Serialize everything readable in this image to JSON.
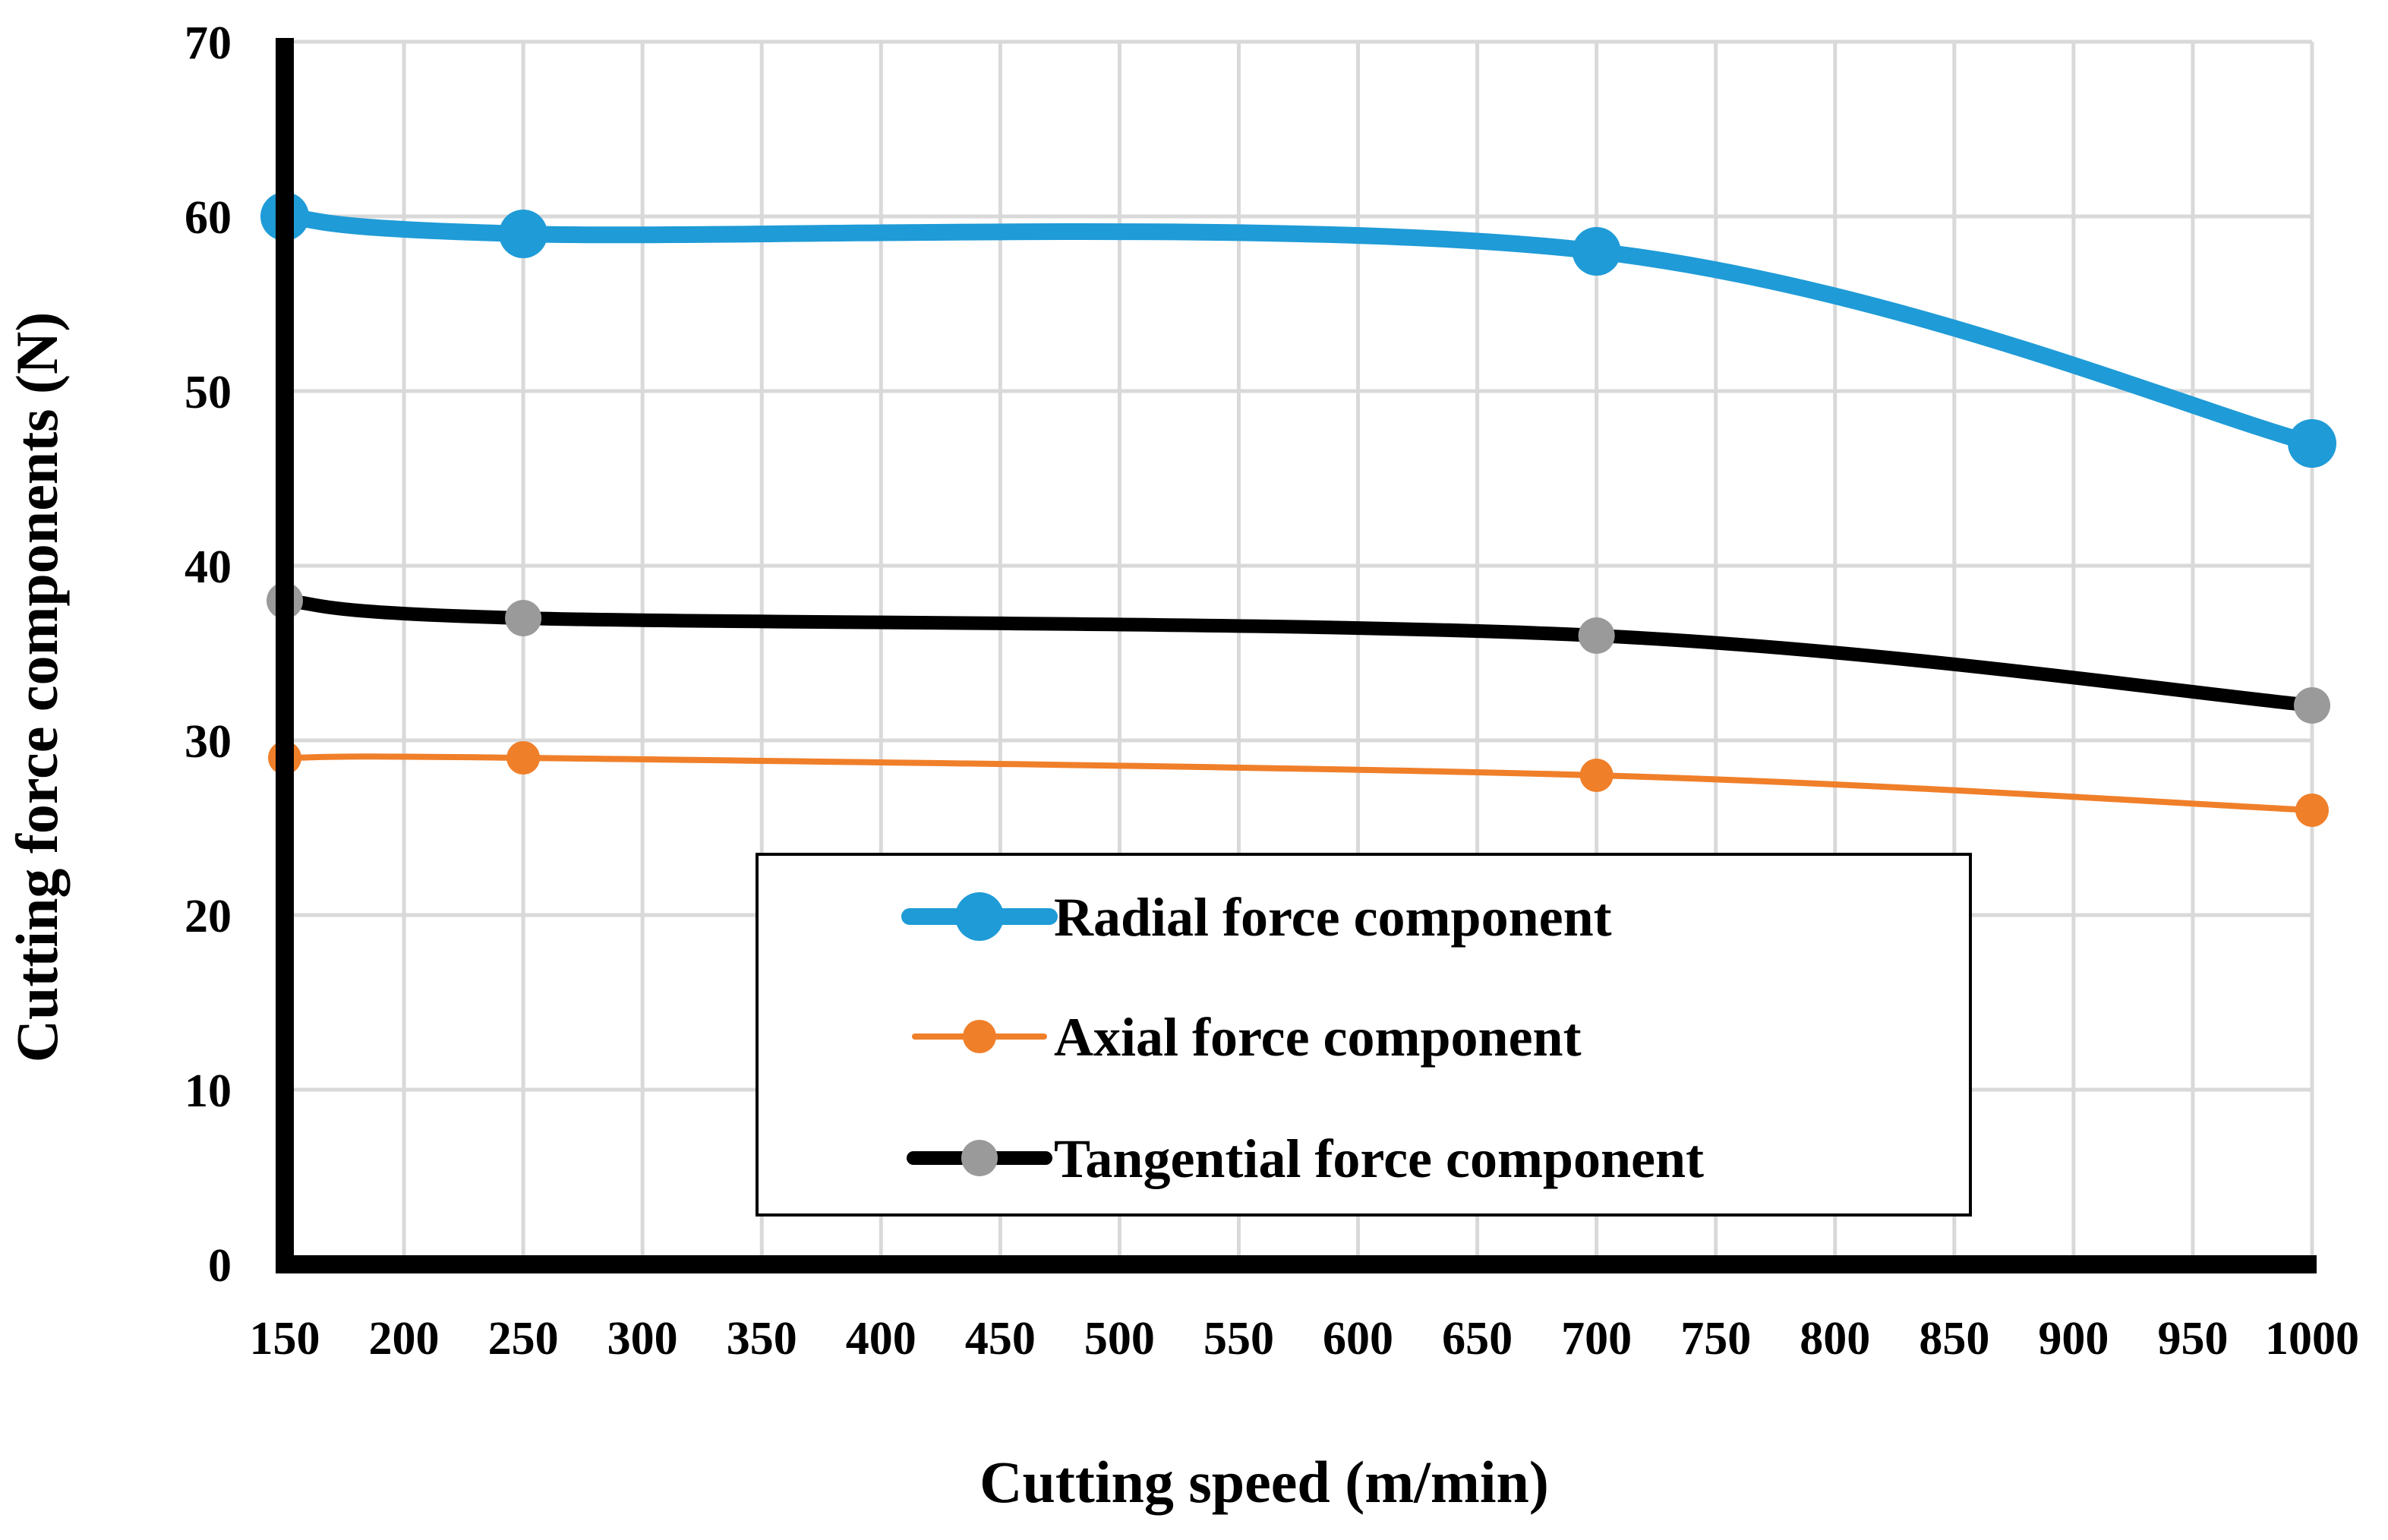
{
  "chart_data": {
    "type": "line",
    "title": "",
    "xlabel": "Cutting speed (m/min)",
    "ylabel": "Cutting force components (N)",
    "xlim": [
      150,
      1000
    ],
    "ylim": [
      0,
      70
    ],
    "x_ticks": [
      "150",
      "200",
      "250",
      "300",
      "350",
      "400",
      "450",
      "500",
      "550",
      "600",
      "650",
      "700",
      "750",
      "800",
      "850",
      "900",
      "950",
      "1000"
    ],
    "y_ticks": [
      "0",
      "10",
      "20",
      "30",
      "40",
      "50",
      "60",
      "70"
    ],
    "grid": true,
    "legend_position": "center",
    "x": [
      150,
      250,
      700,
      1000
    ],
    "series": [
      {
        "name": "Radial force component",
        "values": [
          60,
          59,
          58,
          47
        ],
        "color": "#1f9bd7"
      },
      {
        "name": "Axial force component",
        "values": [
          29,
          29,
          28,
          26
        ],
        "color": "#f07f2a"
      },
      {
        "name": "Tangential force component",
        "values": [
          38,
          37,
          36,
          32
        ],
        "color": "#000000",
        "marker_color": "#9a9a9a"
      }
    ]
  }
}
